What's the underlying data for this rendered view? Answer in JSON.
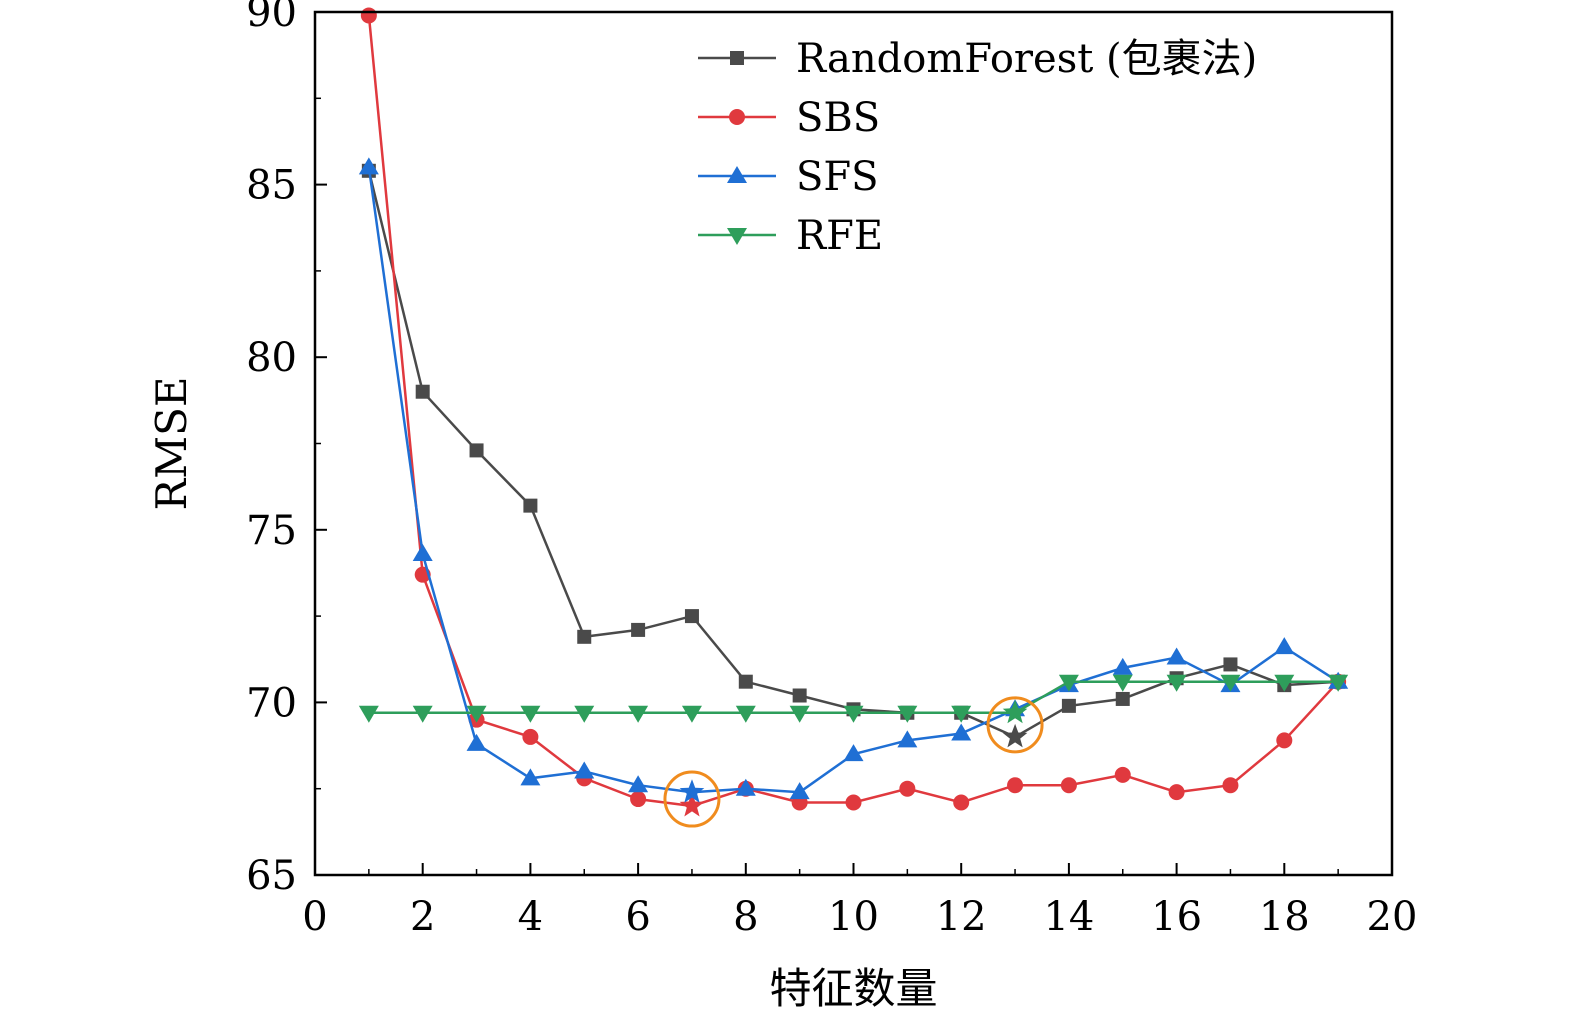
{
  "chart_data": {
    "type": "line",
    "title": "",
    "xlabel": "特征数量",
    "ylabel": "RMSE",
    "xlim": [
      0,
      20
    ],
    "ylim": [
      65,
      90
    ],
    "xticks": [
      0,
      2,
      4,
      6,
      8,
      10,
      12,
      14,
      16,
      18,
      20
    ],
    "yticks": [
      65,
      70,
      75,
      80,
      85,
      90
    ],
    "grid": false,
    "legend_position": "top-right",
    "x": [
      1,
      2,
      3,
      4,
      5,
      6,
      7,
      8,
      9,
      10,
      11,
      12,
      13,
      14,
      15,
      16,
      17,
      18,
      19
    ],
    "series": [
      {
        "name": "RandomForest (包裹法)",
        "marker": "square",
        "color": "#4a4a4a",
        "values": [
          85.4,
          79.0,
          77.3,
          75.7,
          71.9,
          72.1,
          72.5,
          70.6,
          70.2,
          69.8,
          69.7,
          69.7,
          69.0,
          69.9,
          70.1,
          70.7,
          71.1,
          70.5,
          70.6
        ]
      },
      {
        "name": "SBS",
        "marker": "circle",
        "color": "#e0393e",
        "values": [
          89.9,
          73.7,
          69.5,
          69.0,
          67.8,
          67.2,
          67.0,
          67.5,
          67.1,
          67.1,
          67.5,
          67.1,
          67.6,
          67.6,
          67.9,
          67.4,
          67.6,
          68.9,
          70.6
        ]
      },
      {
        "name": "SFS",
        "marker": "triangle-up",
        "color": "#1f6fd4",
        "values": [
          85.5,
          74.3,
          68.8,
          67.8,
          68.0,
          67.6,
          67.4,
          67.5,
          67.4,
          68.5,
          68.9,
          69.1,
          69.8,
          70.5,
          71.0,
          71.3,
          70.5,
          71.6,
          70.6
        ]
      },
      {
        "name": "RFE",
        "marker": "triangle-down",
        "color": "#2e9e5b",
        "values": [
          69.7,
          69.7,
          69.7,
          69.7,
          69.7,
          69.7,
          69.7,
          69.7,
          69.7,
          69.7,
          69.7,
          69.7,
          69.7,
          70.6,
          70.6,
          70.6,
          70.6,
          70.6,
          70.6
        ]
      }
    ],
    "highlights": [
      {
        "series": "RandomForest (包裹法)",
        "x": 13,
        "y": 69.0,
        "marker": "star",
        "color": "#4a4a4a",
        "circle_color": "#f08c1e"
      },
      {
        "series": "SBS",
        "x": 7,
        "y": 67.0,
        "marker": "star",
        "color": "#e0393e",
        "circle_color": "#f08c1e"
      },
      {
        "series": "SFS",
        "x": 7,
        "y": 67.4,
        "marker": "star",
        "color": "#1f6fd4",
        "circle_color": "#f08c1e"
      },
      {
        "series": "RFE",
        "x": 13,
        "y": 69.7,
        "marker": "star",
        "color": "#2e9e5b",
        "circle_color": "#f08c1e"
      }
    ]
  }
}
